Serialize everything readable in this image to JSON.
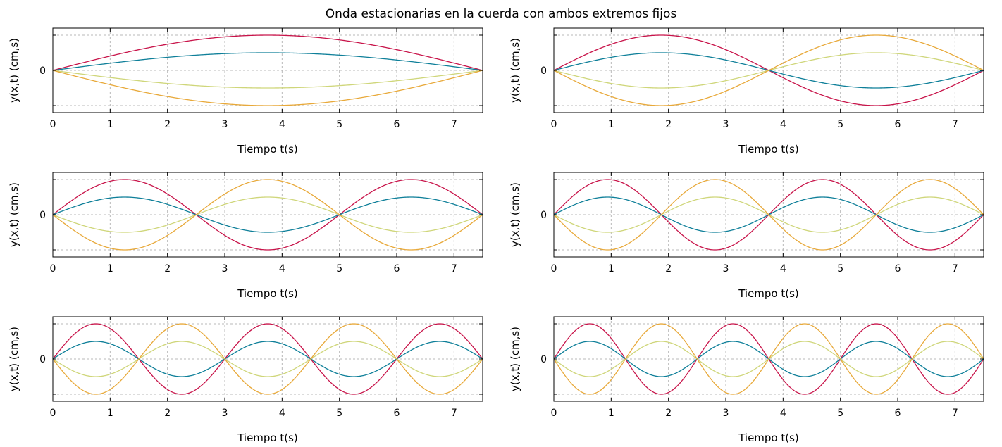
{
  "figure": {
    "title": "Onda estacionarias en la cuerda con ambos extremos fijos",
    "colors": {
      "c1": "#c8144a",
      "c2": "#0e7f99",
      "c3": "#cfd67a",
      "c4": "#e8a93a"
    }
  },
  "chart_data": [
    {
      "type": "line",
      "xlabel": "Tiempo t(s)",
      "ylabel": "y(x,t) (cm,s)",
      "xlim": [
        0,
        7.5
      ],
      "ylim": [
        -1.2,
        1.2
      ],
      "xticks": [
        "0",
        "1",
        "2",
        "3",
        "4",
        "5",
        "6",
        "7"
      ],
      "yticks": [
        "0"
      ],
      "grid": true,
      "mode": 1,
      "length": 7.5,
      "series": [
        {
          "amplitude": 1.0,
          "color": "#c8144a"
        },
        {
          "amplitude": 0.5,
          "color": "#0e7f99"
        },
        {
          "amplitude": -0.5,
          "color": "#cfd67a"
        },
        {
          "amplitude": -1.0,
          "color": "#e8a93a"
        }
      ]
    },
    {
      "type": "line",
      "xlabel": "Tiempo t(s)",
      "ylabel": "y(x,t) (cm,s)",
      "xlim": [
        0,
        7.5
      ],
      "ylim": [
        -1.2,
        1.2
      ],
      "xticks": [
        "0",
        "1",
        "2",
        "3",
        "4",
        "5",
        "6",
        "7"
      ],
      "yticks": [
        "0"
      ],
      "grid": true,
      "mode": 2,
      "length": 7.5,
      "series": [
        {
          "amplitude": 1.0,
          "color": "#c8144a"
        },
        {
          "amplitude": 0.5,
          "color": "#0e7f99"
        },
        {
          "amplitude": -0.5,
          "color": "#cfd67a"
        },
        {
          "amplitude": -1.0,
          "color": "#e8a93a"
        }
      ]
    },
    {
      "type": "line",
      "xlabel": "Tiempo t(s)",
      "ylabel": "y(x,t) (cm,s)",
      "xlim": [
        0,
        7.5
      ],
      "ylim": [
        -1.2,
        1.2
      ],
      "xticks": [
        "0",
        "1",
        "2",
        "3",
        "4",
        "5",
        "6",
        "7"
      ],
      "yticks": [
        "0"
      ],
      "grid": true,
      "mode": 3,
      "length": 7.5,
      "series": [
        {
          "amplitude": 1.0,
          "color": "#c8144a"
        },
        {
          "amplitude": 0.5,
          "color": "#0e7f99"
        },
        {
          "amplitude": -0.5,
          "color": "#cfd67a"
        },
        {
          "amplitude": -1.0,
          "color": "#e8a93a"
        }
      ]
    },
    {
      "type": "line",
      "xlabel": "Tiempo t(s)",
      "ylabel": "y(x,t) (cm,s)",
      "xlim": [
        0,
        7.5
      ],
      "ylim": [
        -1.2,
        1.2
      ],
      "xticks": [
        "0",
        "1",
        "2",
        "3",
        "4",
        "5",
        "6",
        "7"
      ],
      "yticks": [
        "0"
      ],
      "grid": true,
      "mode": 4,
      "length": 7.5,
      "series": [
        {
          "amplitude": 1.0,
          "color": "#c8144a"
        },
        {
          "amplitude": 0.5,
          "color": "#0e7f99"
        },
        {
          "amplitude": -0.5,
          "color": "#cfd67a"
        },
        {
          "amplitude": -1.0,
          "color": "#e8a93a"
        }
      ]
    },
    {
      "type": "line",
      "xlabel": "Tiempo t(s)",
      "ylabel": "y(x,t) (cm,s)",
      "xlim": [
        0,
        7.5
      ],
      "ylim": [
        -1.2,
        1.2
      ],
      "xticks": [
        "0",
        "1",
        "2",
        "3",
        "4",
        "5",
        "6",
        "7"
      ],
      "yticks": [
        "0"
      ],
      "grid": true,
      "mode": 5,
      "length": 7.5,
      "series": [
        {
          "amplitude": 1.0,
          "color": "#c8144a"
        },
        {
          "amplitude": 0.5,
          "color": "#0e7f99"
        },
        {
          "amplitude": -0.5,
          "color": "#cfd67a"
        },
        {
          "amplitude": -1.0,
          "color": "#e8a93a"
        }
      ]
    },
    {
      "type": "line",
      "xlabel": "Tiempo t(s)",
      "ylabel": "y(x,t) (cm,s)",
      "xlim": [
        0,
        7.5
      ],
      "ylim": [
        -1.2,
        1.2
      ],
      "xticks": [
        "0",
        "1",
        "2",
        "3",
        "4",
        "5",
        "6",
        "7"
      ],
      "yticks": [
        "0"
      ],
      "grid": true,
      "mode": 6,
      "length": 7.5,
      "series": [
        {
          "amplitude": 1.0,
          "color": "#c8144a"
        },
        {
          "amplitude": 0.5,
          "color": "#0e7f99"
        },
        {
          "amplitude": -0.5,
          "color": "#cfd67a"
        },
        {
          "amplitude": -1.0,
          "color": "#e8a93a"
        }
      ]
    }
  ]
}
